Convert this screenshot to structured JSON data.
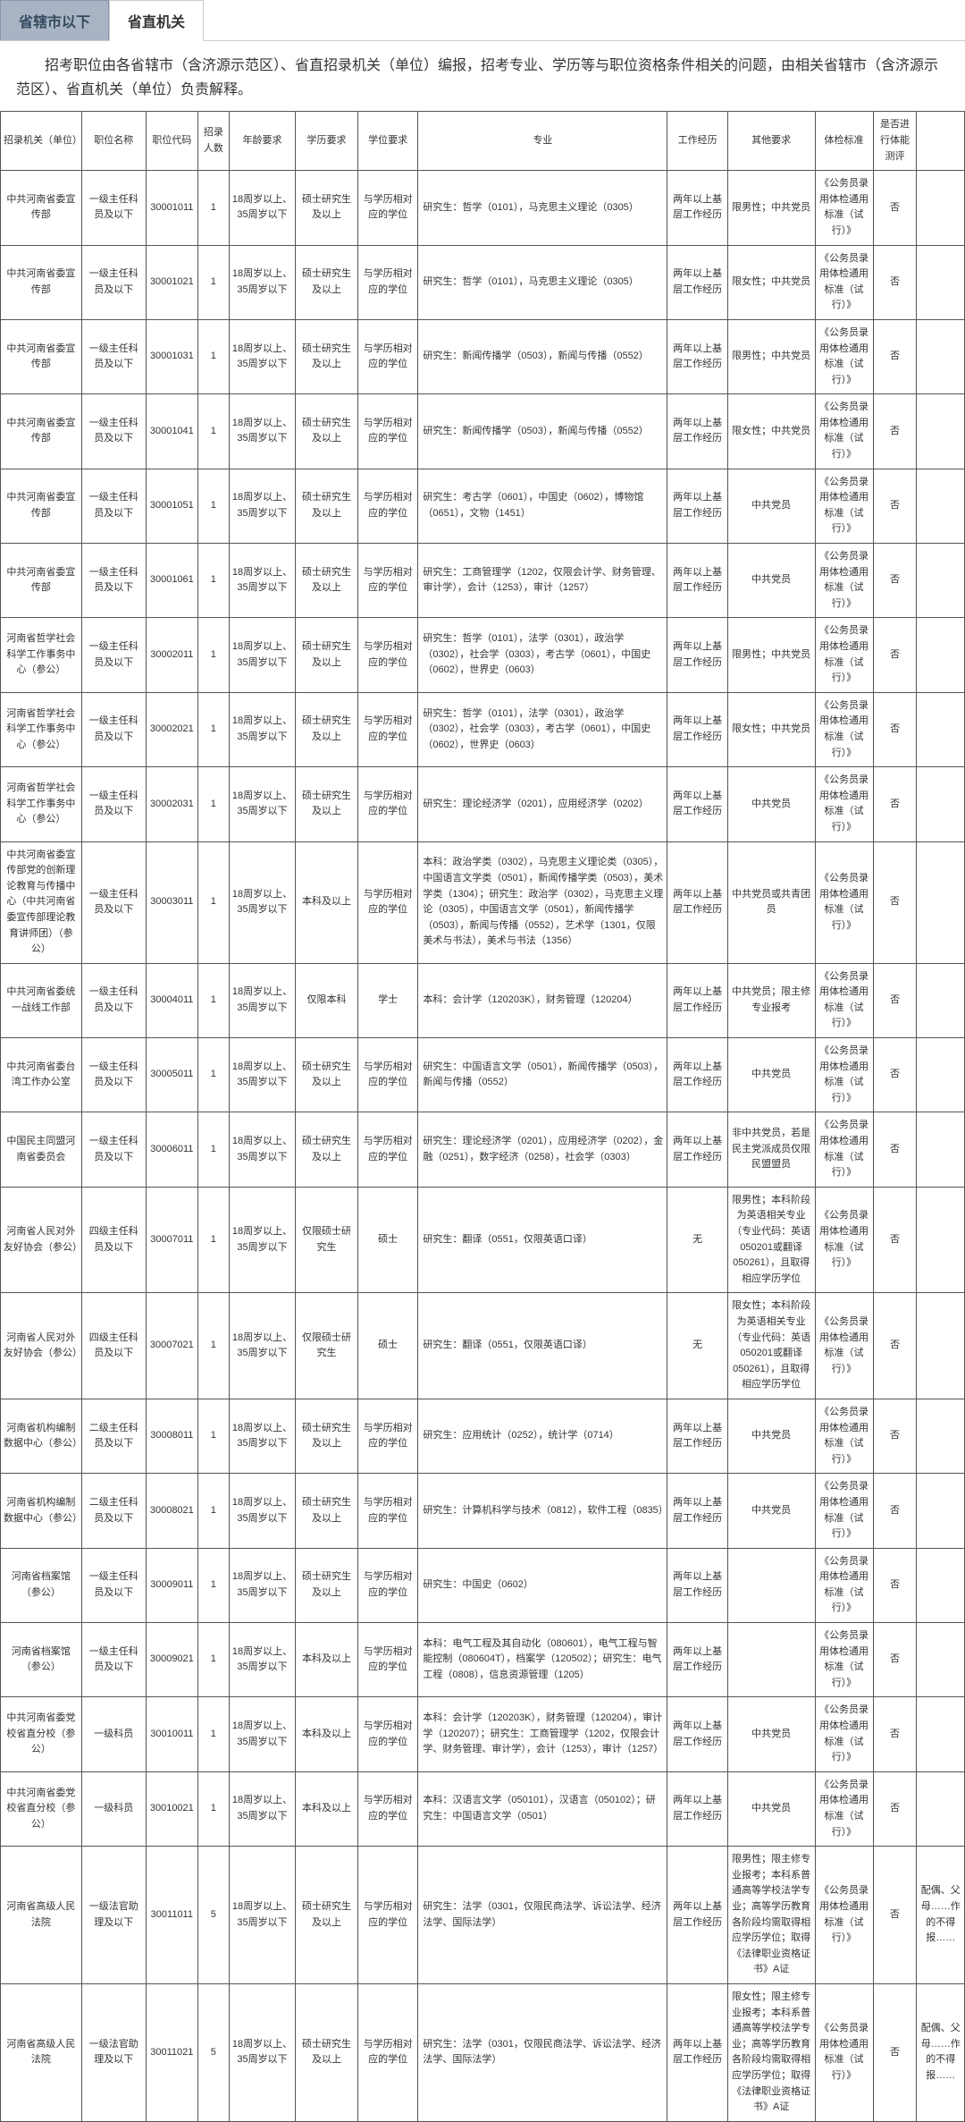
{
  "tabs": {
    "inactive": "省辖市以下",
    "active": "省直机关"
  },
  "note": "招考职位由各省辖市（含济源示范区）、省直招录机关（单位）编报，招考专业、学历等与职位资格条件相关的问题，由相关省辖市（含济源示范区）、省直机关（单位）负责解释。",
  "headers": [
    "招录机关（单位）",
    "职位名称",
    "职位代码",
    "招录人数",
    "年龄要求",
    "学历要求",
    "学位要求",
    "专业",
    "工作经历",
    "其他要求",
    "体检标准",
    "是否进行体能测评",
    ""
  ],
  "rows": [
    {
      "org": "中共河南省委宣传部",
      "pos": "一级主任科员及以下",
      "code": "30001011",
      "num": "1",
      "age": "18周岁以上、35周岁以下",
      "edu": "硕士研究生及以上",
      "deg": "与学历相对应的学位",
      "major": "研究生：哲学（0101），马克思主义理论（0305）",
      "exp": "两年以上基层工作经历",
      "other": "限男性；中共党员",
      "std": "《公务员录用体检通用标准（试行）》",
      "pt": "否",
      "rm": ""
    },
    {
      "org": "中共河南省委宣传部",
      "pos": "一级主任科员及以下",
      "code": "30001021",
      "num": "1",
      "age": "18周岁以上、35周岁以下",
      "edu": "硕士研究生及以上",
      "deg": "与学历相对应的学位",
      "major": "研究生：哲学（0101），马克思主义理论（0305）",
      "exp": "两年以上基层工作经历",
      "other": "限女性；中共党员",
      "std": "《公务员录用体检通用标准（试行）》",
      "pt": "否",
      "rm": ""
    },
    {
      "org": "中共河南省委宣传部",
      "pos": "一级主任科员及以下",
      "code": "30001031",
      "num": "1",
      "age": "18周岁以上、35周岁以下",
      "edu": "硕士研究生及以上",
      "deg": "与学历相对应的学位",
      "major": "研究生：新闻传播学（0503），新闻与传播（0552）",
      "exp": "两年以上基层工作经历",
      "other": "限男性；中共党员",
      "std": "《公务员录用体检通用标准（试行）》",
      "pt": "否",
      "rm": ""
    },
    {
      "org": "中共河南省委宣传部",
      "pos": "一级主任科员及以下",
      "code": "30001041",
      "num": "1",
      "age": "18周岁以上、35周岁以下",
      "edu": "硕士研究生及以上",
      "deg": "与学历相对应的学位",
      "major": "研究生：新闻传播学（0503），新闻与传播（0552）",
      "exp": "两年以上基层工作经历",
      "other": "限女性；中共党员",
      "std": "《公务员录用体检通用标准（试行）》",
      "pt": "否",
      "rm": ""
    },
    {
      "org": "中共河南省委宣传部",
      "pos": "一级主任科员及以下",
      "code": "30001051",
      "num": "1",
      "age": "18周岁以上、35周岁以下",
      "edu": "硕士研究生及以上",
      "deg": "与学历相对应的学位",
      "major": "研究生：考古学（0601），中国史（0602），博物馆（0651），文物（1451）",
      "exp": "两年以上基层工作经历",
      "other": "中共党员",
      "std": "《公务员录用体检通用标准（试行）》",
      "pt": "否",
      "rm": ""
    },
    {
      "org": "中共河南省委宣传部",
      "pos": "一级主任科员及以下",
      "code": "30001061",
      "num": "1",
      "age": "18周岁以上、35周岁以下",
      "edu": "硕士研究生及以上",
      "deg": "与学历相对应的学位",
      "major": "研究生：工商管理学（1202，仅限会计学、财务管理、审计学），会计（1253），审计（1257）",
      "exp": "两年以上基层工作经历",
      "other": "中共党员",
      "std": "《公务员录用体检通用标准（试行）》",
      "pt": "否",
      "rm": ""
    },
    {
      "org": "河南省哲学社会科学工作事务中心（参公）",
      "pos": "一级主任科员及以下",
      "code": "30002011",
      "num": "1",
      "age": "18周岁以上、35周岁以下",
      "edu": "硕士研究生及以上",
      "deg": "与学历相对应的学位",
      "major": "研究生：哲学（0101），法学（0301），政治学（0302），社会学（0303），考古学（0601），中国史（0602），世界史（0603）",
      "exp": "两年以上基层工作经历",
      "other": "限男性；中共党员",
      "std": "《公务员录用体检通用标准（试行）》",
      "pt": "否",
      "rm": ""
    },
    {
      "org": "河南省哲学社会科学工作事务中心（参公）",
      "pos": "一级主任科员及以下",
      "code": "30002021",
      "num": "1",
      "age": "18周岁以上、35周岁以下",
      "edu": "硕士研究生及以上",
      "deg": "与学历相对应的学位",
      "major": "研究生：哲学（0101），法学（0301），政治学（0302），社会学（0303），考古学（0601），中国史（0602），世界史（0603）",
      "exp": "两年以上基层工作经历",
      "other": "限女性；中共党员",
      "std": "《公务员录用体检通用标准（试行）》",
      "pt": "否",
      "rm": ""
    },
    {
      "org": "河南省哲学社会科学工作事务中心（参公）",
      "pos": "一级主任科员及以下",
      "code": "30002031",
      "num": "1",
      "age": "18周岁以上、35周岁以下",
      "edu": "硕士研究生及以上",
      "deg": "与学历相对应的学位",
      "major": "研究生：理论经济学（0201），应用经济学（0202）",
      "exp": "两年以上基层工作经历",
      "other": "中共党员",
      "std": "《公务员录用体检通用标准（试行）》",
      "pt": "否",
      "rm": ""
    },
    {
      "org": "中共河南省委宣传部党的创新理论教育与传播中心（中共河南省委宣传部理论教育讲师团）（参公）",
      "pos": "一级主任科员及以下",
      "code": "30003011",
      "num": "1",
      "age": "18周岁以上、35周岁以下",
      "edu": "本科及以上",
      "deg": "与学历相对应的学位",
      "major": "本科：政治学类（0302），马克思主义理论类（0305），中国语言文学类（0501），新闻传播学类（0503），美术学类（1304）；研究生：政治学（0302），马克思主义理论（0305），中国语言文学（0501），新闻传播学（0503），新闻与传播（0552），艺术学（1301，仅限美术与书法），美术与书法（1356）",
      "exp": "两年以上基层工作经历",
      "other": "中共党员或共青团员",
      "std": "《公务员录用体检通用标准（试行）》",
      "pt": "否",
      "rm": ""
    },
    {
      "org": "中共河南省委统一战线工作部",
      "pos": "一级主任科员及以下",
      "code": "30004011",
      "num": "1",
      "age": "18周岁以上、35周岁以下",
      "edu": "仅限本科",
      "deg": "学士",
      "major": "本科：会计学（120203K），财务管理（120204）",
      "exp": "两年以上基层工作经历",
      "other": "中共党员；限主修专业报考",
      "std": "《公务员录用体检通用标准（试行）》",
      "pt": "否",
      "rm": ""
    },
    {
      "org": "中共河南省委台湾工作办公室",
      "pos": "一级主任科员及以下",
      "code": "30005011",
      "num": "1",
      "age": "18周岁以上、35周岁以下",
      "edu": "硕士研究生及以上",
      "deg": "与学历相对应的学位",
      "major": "研究生：中国语言文学（0501），新闻传播学（0503），新闻与传播（0552）",
      "exp": "两年以上基层工作经历",
      "other": "中共党员",
      "std": "《公务员录用体检通用标准（试行）》",
      "pt": "否",
      "rm": ""
    },
    {
      "org": "中国民主同盟河南省委员会",
      "pos": "一级主任科员及以下",
      "code": "30006011",
      "num": "1",
      "age": "18周岁以上、35周岁以下",
      "edu": "硕士研究生及以上",
      "deg": "与学历相对应的学位",
      "major": "研究生：理论经济学（0201），应用经济学（0202），金融（0251），数字经济（0258），社会学（0303）",
      "exp": "两年以上基层工作经历",
      "other": "非中共党员，若是民主党派成员仅限民盟盟员",
      "std": "《公务员录用体检通用标准（试行）》",
      "pt": "否",
      "rm": ""
    },
    {
      "org": "河南省人民对外友好协会（参公）",
      "pos": "四级主任科员及以下",
      "code": "30007011",
      "num": "1",
      "age": "18周岁以上、35周岁以下",
      "edu": "仅限硕士研究生",
      "deg": "硕士",
      "major": "研究生：翻译（0551，仅限英语口译）",
      "exp": "无",
      "other": "限男性；本科阶段为英语相关专业（专业代码：英语050201或翻译050261），且取得相应学历学位",
      "std": "《公务员录用体检通用标准（试行）》",
      "pt": "否",
      "rm": ""
    },
    {
      "org": "河南省人民对外友好协会（参公）",
      "pos": "四级主任科员及以下",
      "code": "30007021",
      "num": "1",
      "age": "18周岁以上、35周岁以下",
      "edu": "仅限硕士研究生",
      "deg": "硕士",
      "major": "研究生：翻译（0551，仅限英语口译）",
      "exp": "无",
      "other": "限女性；本科阶段为英语相关专业（专业代码：英语050201或翻译050261），且取得相应学历学位",
      "std": "《公务员录用体检通用标准（试行）》",
      "pt": "否",
      "rm": ""
    },
    {
      "org": "河南省机构编制数据中心（参公）",
      "pos": "二级主任科员及以下",
      "code": "30008011",
      "num": "1",
      "age": "18周岁以上、35周岁以下",
      "edu": "硕士研究生及以上",
      "deg": "与学历相对应的学位",
      "major": "研究生：应用统计（0252），统计学（0714）",
      "exp": "两年以上基层工作经历",
      "other": "中共党员",
      "std": "《公务员录用体检通用标准（试行）》",
      "pt": "否",
      "rm": ""
    },
    {
      "org": "河南省机构编制数据中心（参公）",
      "pos": "二级主任科员及以下",
      "code": "30008021",
      "num": "1",
      "age": "18周岁以上、35周岁以下",
      "edu": "硕士研究生及以上",
      "deg": "与学历相对应的学位",
      "major": "研究生：计算机科学与技术（0812），软件工程（0835）",
      "exp": "两年以上基层工作经历",
      "other": "中共党员",
      "std": "《公务员录用体检通用标准（试行）》",
      "pt": "否",
      "rm": ""
    },
    {
      "org": "河南省档案馆（参公）",
      "pos": "一级主任科员及以下",
      "code": "30009011",
      "num": "1",
      "age": "18周岁以上、35周岁以下",
      "edu": "硕士研究生及以上",
      "deg": "与学历相对应的学位",
      "major": "研究生：中国史（0602）",
      "exp": "两年以上基层工作经历",
      "other": "",
      "std": "《公务员录用体检通用标准（试行）》",
      "pt": "否",
      "rm": ""
    },
    {
      "org": "河南省档案馆（参公）",
      "pos": "一级主任科员及以下",
      "code": "30009021",
      "num": "1",
      "age": "18周岁以上、35周岁以下",
      "edu": "本科及以上",
      "deg": "与学历相对应的学位",
      "major": "本科：电气工程及其自动化（080601），电气工程与智能控制（080604T），档案学（120502）；研究生：电气工程（0808），信息资源管理（1205）",
      "exp": "两年以上基层工作经历",
      "other": "",
      "std": "《公务员录用体检通用标准（试行）》",
      "pt": "否",
      "rm": ""
    },
    {
      "org": "中共河南省委党校省直分校（参公）",
      "pos": "一级科员",
      "code": "30010011",
      "num": "1",
      "age": "18周岁以上、35周岁以下",
      "edu": "本科及以上",
      "deg": "与学历相对应的学位",
      "major": "本科：会计学（120203K），财务管理（120204），审计学（120207）；研究生：工商管理学（1202，仅限会计学、财务管理、审计学），会计（1253），审计（1257）",
      "exp": "两年以上基层工作经历",
      "other": "中共党员",
      "std": "《公务员录用体检通用标准（试行）》",
      "pt": "否",
      "rm": ""
    },
    {
      "org": "中共河南省委党校省直分校（参公）",
      "pos": "一级科员",
      "code": "30010021",
      "num": "1",
      "age": "18周岁以上、35周岁以下",
      "edu": "本科及以上",
      "deg": "与学历相对应的学位",
      "major": "本科：汉语言文学（050101），汉语言（050102）；研究生：中国语言文学（0501）",
      "exp": "两年以上基层工作经历",
      "other": "中共党员",
      "std": "《公务员录用体检通用标准（试行）》",
      "pt": "否",
      "rm": ""
    },
    {
      "org": "河南省高级人民法院",
      "pos": "一级法官助理及以下",
      "code": "30011011",
      "num": "5",
      "age": "18周岁以上、35周岁以下",
      "edu": "硕士研究生及以上",
      "deg": "与学历相对应的学位",
      "major": "研究生：法学（0301，仅限民商法学、诉讼法学、经济法学、国际法学）",
      "exp": "两年以上基层工作经历",
      "other": "限男性；限主修专业报考；本科系普通高等学校法学专业；高等学历教育各阶段均需取得相应学历学位；取得《法律职业资格证书》A证",
      "std": "《公务员录用体检通用标准（试行）》",
      "pt": "否",
      "rm": "配偶、父母……作的不得报……"
    },
    {
      "org": "河南省高级人民法院",
      "pos": "一级法官助理及以下",
      "code": "30011021",
      "num": "5",
      "age": "18周岁以上、35周岁以下",
      "edu": "硕士研究生及以上",
      "deg": "与学历相对应的学位",
      "major": "研究生：法学（0301，仅限民商法学、诉讼法学、经济法学、国际法学）",
      "exp": "两年以上基层工作经历",
      "other": "限女性；限主修专业报考；本科系普通高等学校法学专业；高等学历教育各阶段均需取得相应学历学位；取得《法律职业资格证书》A证",
      "std": "《公务员录用体检通用标准（试行）》",
      "pt": "否",
      "rm": "配偶、父母……作的不得报……"
    }
  ]
}
